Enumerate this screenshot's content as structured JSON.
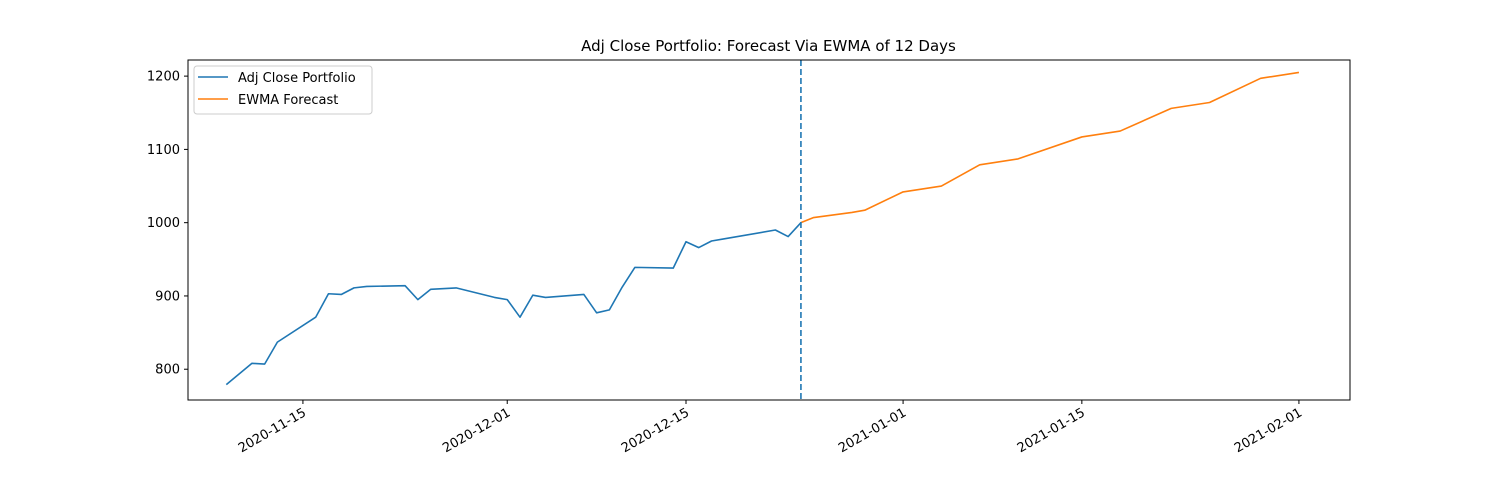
{
  "chart_data": {
    "type": "line",
    "title": "Adj Close Portfolio: Forecast Via EWMA of 12 Days",
    "xlabel": "",
    "ylabel": "",
    "xlim": [
      "2020-11-06",
      "2021-02-05"
    ],
    "ylim": [
      758,
      1222
    ],
    "yticks": [
      800,
      900,
      1000,
      1100,
      1200
    ],
    "xticks": [
      "2020-11-15",
      "2020-12-01",
      "2020-12-15",
      "2021-01-01",
      "2021-01-15",
      "2021-02-01"
    ],
    "grid": false,
    "legend": "upper left",
    "vline": {
      "x": "2020-12-24",
      "style": "dashed",
      "color": "#1f77b4"
    },
    "series": [
      {
        "name": "Adj Close Portfolio",
        "color": "#1f77b4",
        "points": [
          [
            "2020-11-09",
            779
          ],
          [
            "2020-11-11",
            808
          ],
          [
            "2020-11-12",
            807
          ],
          [
            "2020-11-13",
            837
          ],
          [
            "2020-11-16",
            871
          ],
          [
            "2020-11-17",
            903
          ],
          [
            "2020-11-18",
            902
          ],
          [
            "2020-11-19",
            911
          ],
          [
            "2020-11-20",
            913
          ],
          [
            "2020-11-23",
            914
          ],
          [
            "2020-11-24",
            895
          ],
          [
            "2020-11-25",
            909
          ],
          [
            "2020-11-27",
            911
          ],
          [
            "2020-11-30",
            898
          ],
          [
            "2020-12-01",
            895
          ],
          [
            "2020-12-02",
            871
          ],
          [
            "2020-12-03",
            901
          ],
          [
            "2020-12-04",
            898
          ],
          [
            "2020-12-07",
            902
          ],
          [
            "2020-12-08",
            877
          ],
          [
            "2020-12-09",
            881
          ],
          [
            "2020-12-10",
            912
          ],
          [
            "2020-12-11",
            939
          ],
          [
            "2020-12-14",
            938
          ],
          [
            "2020-12-15",
            974
          ],
          [
            "2020-12-16",
            966
          ],
          [
            "2020-12-17",
            975
          ],
          [
            "2020-12-18",
            978
          ],
          [
            "2020-12-22",
            990
          ],
          [
            "2020-12-23",
            981
          ],
          [
            "2020-12-24",
            1000
          ]
        ]
      },
      {
        "name": "EWMA Forecast",
        "color": "#ff7f0e",
        "points": [
          [
            "2020-12-24",
            1000
          ],
          [
            "2020-12-25",
            1007
          ],
          [
            "2020-12-28",
            1014
          ],
          [
            "2020-12-29",
            1017
          ],
          [
            "2021-01-01",
            1042
          ],
          [
            "2021-01-04",
            1050
          ],
          [
            "2021-01-07",
            1079
          ],
          [
            "2021-01-10",
            1087
          ],
          [
            "2021-01-15",
            1117
          ],
          [
            "2021-01-18",
            1125
          ],
          [
            "2021-01-22",
            1156
          ],
          [
            "2021-01-25",
            1164
          ],
          [
            "2021-01-29",
            1197
          ],
          [
            "2021-02-01",
            1205
          ]
        ]
      }
    ]
  }
}
